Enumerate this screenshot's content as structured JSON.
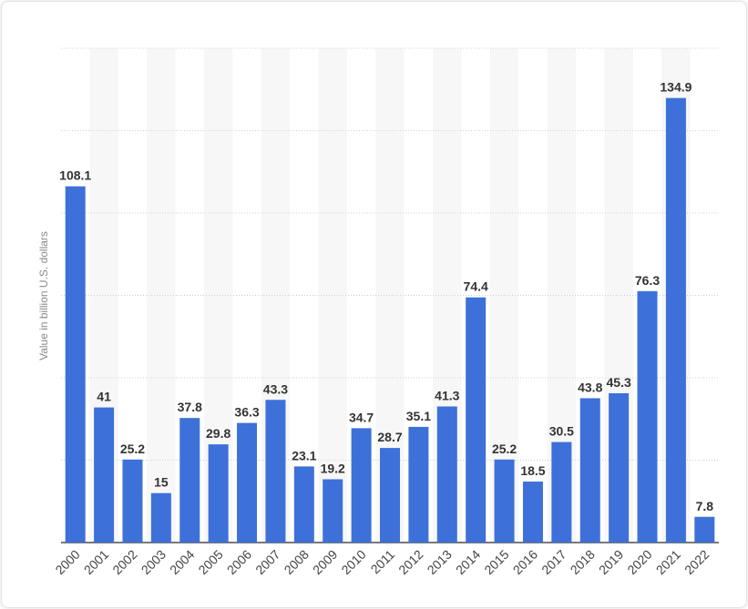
{
  "chart_data": {
    "type": "bar",
    "title": "",
    "xlabel": "",
    "ylabel": "Value in billion U.S. dollars",
    "ylim": [
      0,
      150
    ],
    "categories": [
      "2000",
      "2001",
      "2002",
      "2003",
      "2004",
      "2005",
      "2006",
      "2007",
      "2008",
      "2009",
      "2010",
      "2011",
      "2012",
      "2013",
      "2014",
      "2015",
      "2016",
      "2017",
      "2018",
      "2019",
      "2020",
      "2021",
      "2022"
    ],
    "values": [
      108.1,
      41,
      25.2,
      15,
      37.8,
      29.8,
      36.3,
      43.3,
      23.1,
      19.2,
      34.7,
      28.7,
      35.1,
      41.3,
      74.4,
      25.2,
      18.5,
      30.5,
      43.8,
      45.3,
      76.3,
      134.9,
      7.8
    ],
    "value_labels": [
      "108.1",
      "41",
      "25.2",
      "15",
      "37.8",
      "29.8",
      "36.3",
      "43.3",
      "23.1",
      "19.2",
      "34.7",
      "28.7",
      "35.1",
      "41.3",
      "74.4",
      "25.2",
      "18.5",
      "30.5",
      "43.8",
      "45.3",
      "76.3",
      "134.9",
      "7.8"
    ],
    "grid": true,
    "bar_color": "#3d71d9"
  }
}
